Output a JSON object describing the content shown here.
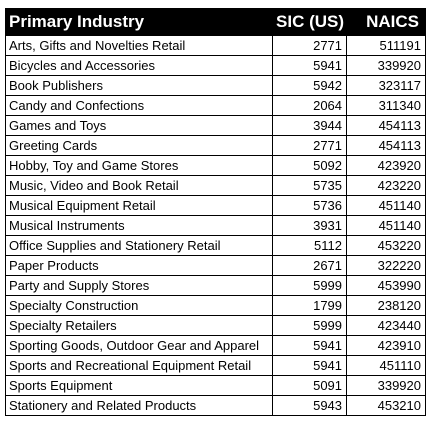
{
  "table": {
    "headers": {
      "industry": "Primary Industry",
      "sic": "SIC (US)",
      "naics": "NAICS"
    },
    "rows": [
      {
        "industry": "Arts, Gifts and Novelties Retail",
        "sic": "2771",
        "naics": "511191"
      },
      {
        "industry": "Bicycles and Accessories",
        "sic": "5941",
        "naics": "339920"
      },
      {
        "industry": "Book Publishers",
        "sic": "5942",
        "naics": "323117"
      },
      {
        "industry": "Candy and Confections",
        "sic": "2064",
        "naics": "311340"
      },
      {
        "industry": "Games and Toys",
        "sic": "3944",
        "naics": "454113"
      },
      {
        "industry": "Greeting Cards",
        "sic": "2771",
        "naics": "454113"
      },
      {
        "industry": "Hobby, Toy and Game Stores",
        "sic": "5092",
        "naics": "423920"
      },
      {
        "industry": "Music, Video and Book Retail",
        "sic": "5735",
        "naics": "423220"
      },
      {
        "industry": "Musical Equipment Retail",
        "sic": "5736",
        "naics": "451140"
      },
      {
        "industry": "Musical Instruments",
        "sic": "3931",
        "naics": "451140"
      },
      {
        "industry": "Office Supplies and Stationery Retail",
        "sic": "5112",
        "naics": "453220"
      },
      {
        "industry": "Paper Products",
        "sic": "2671",
        "naics": "322220"
      },
      {
        "industry": "Party and Supply Stores",
        "sic": "5999",
        "naics": "453990"
      },
      {
        "industry": "Specialty Construction",
        "sic": "1799",
        "naics": "238120"
      },
      {
        "industry": "Specialty Retailers",
        "sic": "5999",
        "naics": "423440"
      },
      {
        "industry": "Sporting Goods, Outdoor Gear and Apparel",
        "sic": "5941",
        "naics": "423910"
      },
      {
        "industry": "Sports and Recreational Equipment Retail",
        "sic": "5941",
        "naics": "451110"
      },
      {
        "industry": "Sports Equipment",
        "sic": "5091",
        "naics": "339920"
      },
      {
        "industry": "Stationery and Related Products",
        "sic": "5943",
        "naics": "453210"
      }
    ]
  }
}
